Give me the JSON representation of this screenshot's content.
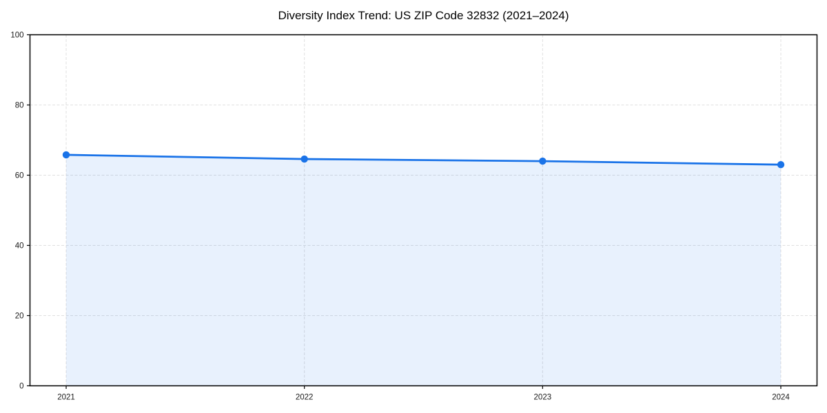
{
  "chart_data": {
    "type": "area",
    "title": "Diversity Index Trend: US ZIP Code 32832 (2021–2024)",
    "categories": [
      "2021",
      "2022",
      "2023",
      "2024"
    ],
    "x": [
      2021,
      2022,
      2023,
      2024
    ],
    "series": [
      {
        "name": "Diversity Index",
        "values": [
          65.8,
          64.6,
          64.0,
          63.0
        ]
      }
    ],
    "xlabel": "",
    "ylabel": "",
    "ylim": [
      0,
      100
    ],
    "yticks": [
      0,
      20,
      40,
      60,
      80,
      100
    ],
    "grid": true,
    "grid_style": "dashed",
    "legend_position": "none",
    "marker": "circle",
    "colors": {
      "line": "#1a73e8",
      "marker_fill": "#1a73e8",
      "area_fill": "rgba(26,115,232,0.10)",
      "grid": "#dfdfdf",
      "spine": "#000000",
      "tick": "#000000",
      "tick_label": "#1a1a1a",
      "title": "#000000",
      "background": "#ffffff"
    }
  }
}
